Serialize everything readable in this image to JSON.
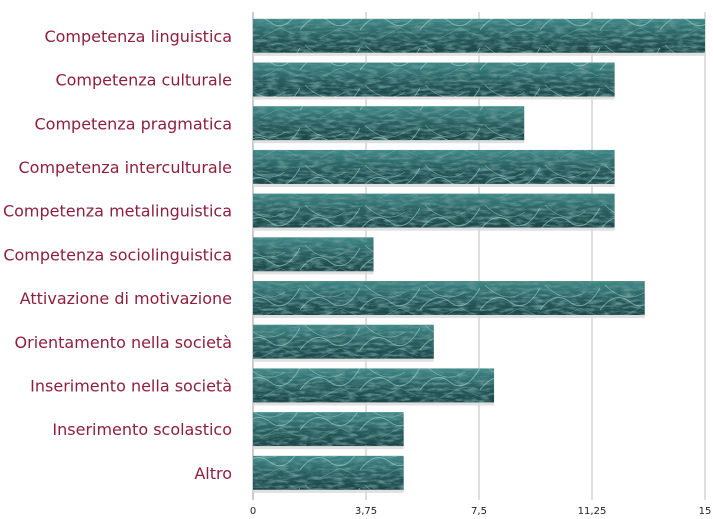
{
  "chart_data": {
    "type": "bar",
    "orientation": "horizontal",
    "title": "",
    "xlabel": "",
    "ylabel": "",
    "categories": [
      "Competenza linguistica",
      "Competenza culturale",
      "Competenza pragmatica",
      "Competenza interculturale",
      "Competenza metalinguistica",
      "Competenza sociolinguistica",
      "Attivazione di motivazione",
      "Orientamento nella società",
      "Inserimento nella società",
      "Inserimento scolastico",
      "Altro"
    ],
    "values": [
      15,
      12,
      9,
      12,
      12,
      4,
      13,
      6,
      8,
      5,
      5
    ],
    "xlim": [
      0,
      15
    ],
    "xticks": [
      0,
      3.75,
      7.5,
      11.25,
      15
    ],
    "xtick_labels": [
      "0",
      "3,75",
      "7,5",
      "11,25",
      "15"
    ],
    "grid": true,
    "legend": "none",
    "colors": {
      "bar": "#2f6b6b",
      "bar_texture_light": "#8fd0cc",
      "label": "#8e1f3d"
    }
  }
}
